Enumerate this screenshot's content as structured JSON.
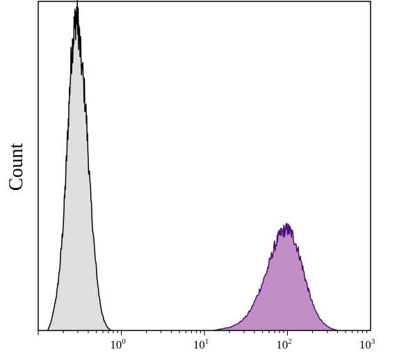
{
  "chart_data": {
    "type": "area",
    "title": "",
    "xlabel": "",
    "ylabel": "Count",
    "x_scale": "log",
    "xlim": [
      0.1,
      1000
    ],
    "ylim": [
      0,
      1
    ],
    "grid": false,
    "x_ticks": [
      {
        "value": 1,
        "base": "10",
        "exp": "0"
      },
      {
        "value": 10,
        "base": "10",
        "exp": "1"
      },
      {
        "value": 100,
        "base": "10",
        "exp": "2"
      },
      {
        "value": 1000,
        "base": "10",
        "exp": "3"
      }
    ],
    "series": [
      {
        "fill": "#dedede",
        "stroke": "#000000",
        "points": [
          [
            0.13,
            0.0
          ],
          [
            0.14,
            0.02
          ],
          [
            0.15,
            0.05
          ],
          [
            0.16,
            0.09
          ],
          [
            0.17,
            0.13
          ],
          [
            0.18,
            0.19
          ],
          [
            0.19,
            0.26
          ],
          [
            0.2,
            0.34
          ],
          [
            0.21,
            0.44
          ],
          [
            0.22,
            0.55
          ],
          [
            0.23,
            0.66
          ],
          [
            0.24,
            0.77
          ],
          [
            0.25,
            0.86
          ],
          [
            0.26,
            0.91
          ],
          [
            0.27,
            0.95
          ],
          [
            0.28,
            0.98
          ],
          [
            0.29,
            1.0
          ],
          [
            0.3,
            0.97
          ],
          [
            0.31,
            0.94
          ],
          [
            0.32,
            0.88
          ],
          [
            0.34,
            0.82
          ],
          [
            0.36,
            0.75
          ],
          [
            0.38,
            0.67
          ],
          [
            0.4,
            0.55
          ],
          [
            0.42,
            0.45
          ],
          [
            0.45,
            0.34
          ],
          [
            0.48,
            0.24
          ],
          [
            0.51,
            0.17
          ],
          [
            0.54,
            0.11
          ],
          [
            0.58,
            0.06
          ],
          [
            0.62,
            0.03
          ],
          [
            0.68,
            0.01
          ],
          [
            0.75,
            0.0
          ]
        ]
      },
      {
        "fill": "#c28fc4",
        "stroke": "#4b0a7a",
        "points": [
          [
            13,
            0.0
          ],
          [
            16,
            0.005
          ],
          [
            20,
            0.01
          ],
          [
            24,
            0.018
          ],
          [
            28,
            0.03
          ],
          [
            32,
            0.045
          ],
          [
            36,
            0.065
          ],
          [
            40,
            0.09
          ],
          [
            45,
            0.12
          ],
          [
            50,
            0.15
          ],
          [
            55,
            0.18
          ],
          [
            60,
            0.21
          ],
          [
            65,
            0.24
          ],
          [
            70,
            0.265
          ],
          [
            75,
            0.285
          ],
          [
            80,
            0.3
          ],
          [
            85,
            0.31
          ],
          [
            90,
            0.315
          ],
          [
            95,
            0.318
          ],
          [
            100,
            0.32
          ],
          [
            105,
            0.316
          ],
          [
            110,
            0.31
          ],
          [
            118,
            0.295
          ],
          [
            126,
            0.275
          ],
          [
            135,
            0.25
          ],
          [
            145,
            0.22
          ],
          [
            155,
            0.19
          ],
          [
            165,
            0.16
          ],
          [
            180,
            0.125
          ],
          [
            195,
            0.095
          ],
          [
            210,
            0.07
          ],
          [
            230,
            0.05
          ],
          [
            250,
            0.035
          ],
          [
            275,
            0.022
          ],
          [
            300,
            0.013
          ],
          [
            330,
            0.007
          ],
          [
            370,
            0.003
          ],
          [
            400,
            0.0
          ]
        ]
      }
    ]
  }
}
